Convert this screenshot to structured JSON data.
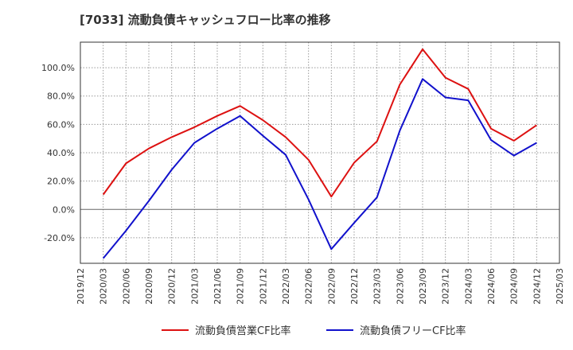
{
  "chart_data": {
    "type": "line",
    "title": "[7033]  流動負債キャッシュフロー比率の推移",
    "x": [
      "2020/03",
      "2020/06",
      "2020/09",
      "2020/12",
      "2021/03",
      "2021/06",
      "2021/09",
      "2021/12",
      "2022/03",
      "2022/06",
      "2022/09",
      "2022/12",
      "2023/03",
      "2023/06",
      "2023/09",
      "2023/12",
      "2024/03",
      "2024/06",
      "2024/09",
      "2024/12"
    ],
    "x_ticks": [
      "2019/12",
      "2020/03",
      "2020/06",
      "2020/09",
      "2020/12",
      "2021/03",
      "2021/06",
      "2021/09",
      "2021/12",
      "2022/03",
      "2022/06",
      "2022/09",
      "2022/12",
      "2023/03",
      "2023/06",
      "2023/09",
      "2023/12",
      "2024/03",
      "2024/06",
      "2024/09",
      "2024/12",
      "2025/03"
    ],
    "y_ticks": [
      -20,
      0,
      20,
      40,
      60,
      80,
      100
    ],
    "y_tick_labels": [
      "-20.0%",
      "0.0%",
      "20.0%",
      "40.0%",
      "60.0%",
      "80.0%",
      "100.0%"
    ],
    "ylim": [
      -38,
      118
    ],
    "ylabel": "",
    "xlabel": "",
    "grid": true,
    "legend_position": "bottom",
    "series": [
      {
        "name": "流動負債営業CF比率",
        "color": "#dd1111",
        "values": [
          10.5,
          32.5,
          43.0,
          51.0,
          58.0,
          66.0,
          73.0,
          63.0,
          51.0,
          35.0,
          9.0,
          33.0,
          48.0,
          88.0,
          113.0,
          93.0,
          85.0,
          57.0,
          48.5,
          59.5
        ]
      },
      {
        "name": "流動負債フリーCF比率",
        "color": "#1111cc",
        "values": [
          -34.5,
          -15.0,
          6.0,
          28.0,
          47.0,
          57.0,
          66.0,
          52.0,
          38.5,
          7.0,
          -28.0,
          -9.5,
          8.5,
          55.5,
          92.0,
          79.0,
          77.0,
          49.0,
          38.0,
          47.0
        ]
      }
    ]
  }
}
